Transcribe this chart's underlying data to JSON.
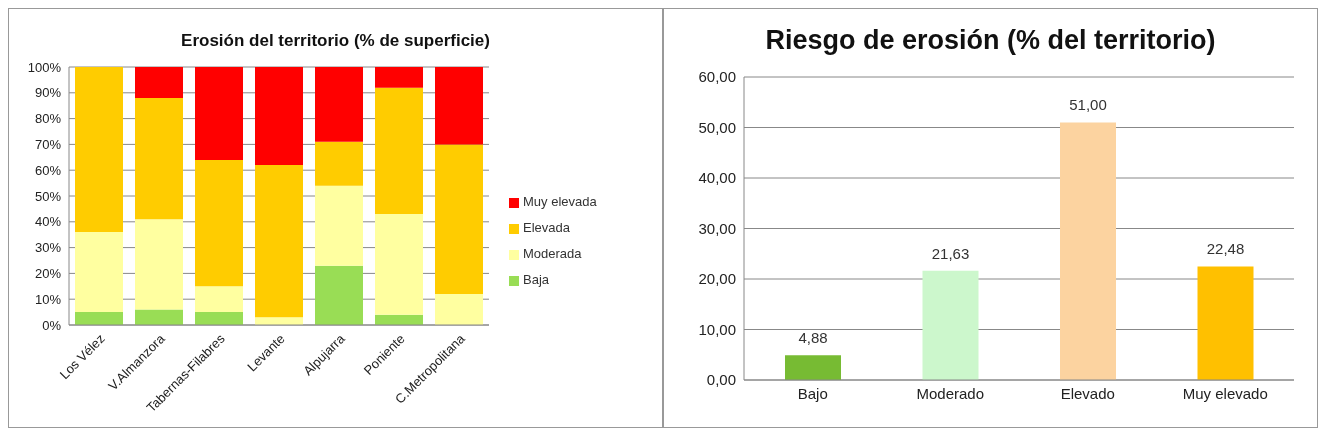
{
  "chart_data": [
    {
      "type": "bar",
      "title": "Erosión del territorio (% de superficie)",
      "stacked": true,
      "categories": [
        "Los Vélez",
        "V.Almanzora",
        "Tabernas-Filabres",
        "Levante",
        "Alpujarra",
        "Poniente",
        "C.Metropolitana"
      ],
      "series": [
        {
          "name": "Baja",
          "color": "#99dd55",
          "values": [
            5,
            6,
            5,
            0,
            23,
            4,
            0
          ]
        },
        {
          "name": "Moderada",
          "color": "#ffffa0",
          "values": [
            31,
            35,
            10,
            3,
            31,
            39,
            12
          ]
        },
        {
          "name": "Elevada",
          "color": "#ffcc00",
          "values": [
            64,
            47,
            49,
            59,
            17,
            49,
            58
          ]
        },
        {
          "name": "Muy elevada",
          "color": "#ff0000",
          "values": [
            0,
            12,
            36,
            38,
            29,
            8,
            30
          ]
        }
      ],
      "ylim": [
        0,
        100
      ],
      "yticks": [
        {
          "value": 0,
          "label": "0%"
        },
        {
          "value": 10,
          "label": "10%"
        },
        {
          "value": 20,
          "label": "20%"
        },
        {
          "value": 30,
          "label": "30%"
        },
        {
          "value": 40,
          "label": "40%"
        },
        {
          "value": 50,
          "label": "50%"
        },
        {
          "value": 60,
          "label": "60%"
        },
        {
          "value": 70,
          "label": "70%"
        },
        {
          "value": 80,
          "label": "80%"
        },
        {
          "value": 90,
          "label": "90%"
        },
        {
          "value": 100,
          "label": "100%"
        }
      ],
      "grid": "y",
      "legend": "right"
    },
    {
      "type": "bar",
      "title": "Riesgo de erosión (% del territorio)",
      "categories": [
        "Bajo",
        "Moderado",
        "Elevado",
        "Muy elevado"
      ],
      "values": [
        4.88,
        21.63,
        51.0,
        22.48
      ],
      "colors": [
        "#77bb33",
        "#ccf7cc",
        "#fcd3a0",
        "#ffc000"
      ],
      "value_labels": [
        "4,88",
        "21,63",
        "51,00",
        "22,48"
      ],
      "ylim": [
        0,
        60
      ],
      "yticks": [
        {
          "value": 0,
          "label": "0,00"
        },
        {
          "value": 10,
          "label": "10,00"
        },
        {
          "value": 20,
          "label": "20,00"
        },
        {
          "value": 30,
          "label": "30,00"
        },
        {
          "value": 40,
          "label": "40,00"
        },
        {
          "value": 50,
          "label": "50,00"
        },
        {
          "value": 60,
          "label": "60,00"
        }
      ],
      "grid": "y"
    }
  ]
}
